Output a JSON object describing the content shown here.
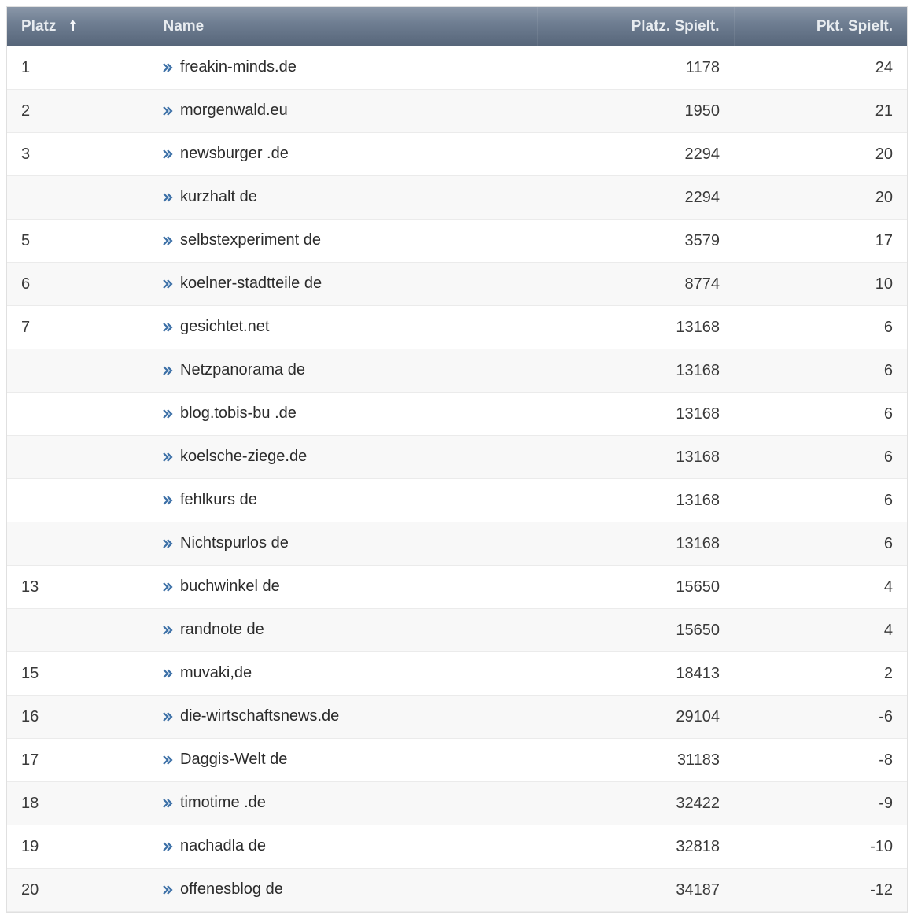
{
  "table": {
    "columns": {
      "platz": "Platz",
      "name": "Name",
      "platz_spielt": "Platz. Spielt.",
      "pkt_spielt": "Pkt. Spielt."
    },
    "sort_column": "platz",
    "sort_direction": "asc",
    "header_gradient_top": "#8a97a8",
    "header_gradient_bottom": "#566579",
    "header_text_color": "#e8ecf0",
    "row_border_color": "#ebebeb",
    "row_alt_bg": "#f8f8f8",
    "text_color": "#2b2b2b",
    "link_icon_stroke": "#3b6fa6",
    "link_icon_fill": "#bcd2e8",
    "font_size_header": 19,
    "font_size_cell": 20,
    "rows": [
      {
        "platz": "1",
        "name": "freakin-minds.de",
        "platz_spielt": "1178",
        "pkt_spielt": "24"
      },
      {
        "platz": "2",
        "name": "morgenwald.eu",
        "platz_spielt": "1950",
        "pkt_spielt": "21"
      },
      {
        "platz": "3",
        "name": "newsburger .de",
        "platz_spielt": "2294",
        "pkt_spielt": "20"
      },
      {
        "platz": "",
        "name": "kurzhalt de",
        "platz_spielt": "2294",
        "pkt_spielt": "20"
      },
      {
        "platz": "5",
        "name": "selbstexperiment de",
        "platz_spielt": "3579",
        "pkt_spielt": "17"
      },
      {
        "platz": "6",
        "name": "koelner-stadtteile de",
        "platz_spielt": "8774",
        "pkt_spielt": "10"
      },
      {
        "platz": "7",
        "name": "gesichtet.net",
        "platz_spielt": "13168",
        "pkt_spielt": "6"
      },
      {
        "platz": "",
        "name": "Netzpanorama de",
        "platz_spielt": "13168",
        "pkt_spielt": "6"
      },
      {
        "platz": "",
        "name": "blog.tobis-bu .de",
        "platz_spielt": "13168",
        "pkt_spielt": "6"
      },
      {
        "platz": "",
        "name": "koelsche-ziege.de",
        "platz_spielt": "13168",
        "pkt_spielt": "6"
      },
      {
        "platz": "",
        "name": "fehlkurs de",
        "platz_spielt": "13168",
        "pkt_spielt": "6"
      },
      {
        "platz": "",
        "name": "Nichtspurlos de",
        "platz_spielt": "13168",
        "pkt_spielt": "6"
      },
      {
        "platz": "13",
        "name": "buchwinkel de",
        "platz_spielt": "15650",
        "pkt_spielt": "4"
      },
      {
        "platz": "",
        "name": "randnote de",
        "platz_spielt": "15650",
        "pkt_spielt": "4"
      },
      {
        "platz": "15",
        "name": "muvaki,de",
        "platz_spielt": "18413",
        "pkt_spielt": "2"
      },
      {
        "platz": "16",
        "name": "die-wirtschaftsnews.de",
        "platz_spielt": "29104",
        "pkt_spielt": "-6"
      },
      {
        "platz": "17",
        "name": "Daggis-Welt de",
        "platz_spielt": "31183",
        "pkt_spielt": "-8"
      },
      {
        "platz": "18",
        "name": "timotime .de",
        "platz_spielt": "32422",
        "pkt_spielt": "-9"
      },
      {
        "platz": "19",
        "name": "nachadla de",
        "platz_spielt": "32818",
        "pkt_spielt": "-10"
      },
      {
        "platz": "20",
        "name": "offenesblog de",
        "platz_spielt": "34187",
        "pkt_spielt": "-12"
      }
    ]
  }
}
